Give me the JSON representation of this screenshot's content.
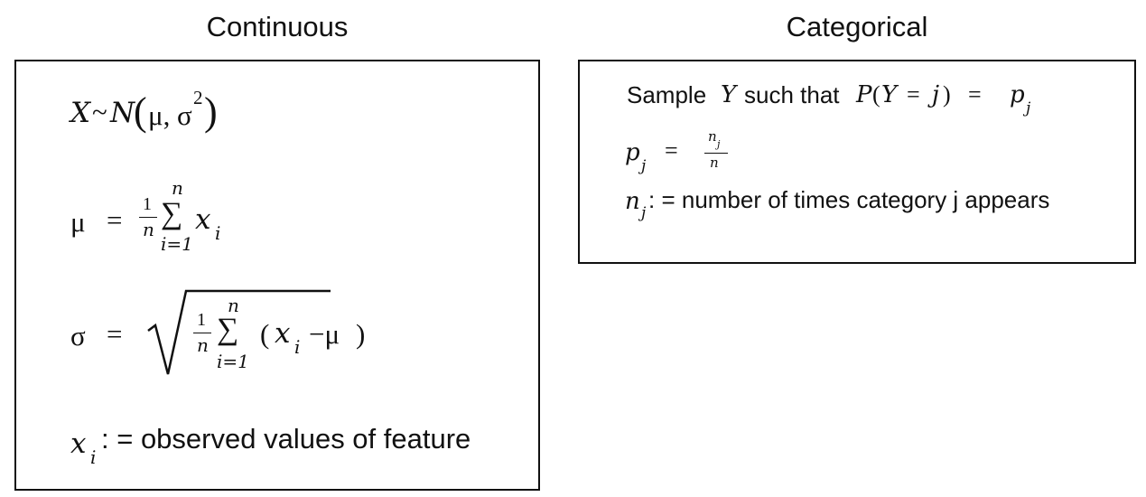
{
  "panels": {
    "continuous": {
      "title": "Continuous",
      "definition_label": ": = observed values of feature",
      "sum_upper": "n",
      "sum_lower": "i=1",
      "frac_num": "1",
      "frac_den": "n"
    },
    "categorical": {
      "title": "Categorical",
      "sample_label": "Sample",
      "such_that_label": "such that",
      "definition_label": ": = number of times category j appears"
    }
  },
  "colors": {
    "ink": "#111111",
    "border": "#111111",
    "background": "#ffffff"
  }
}
